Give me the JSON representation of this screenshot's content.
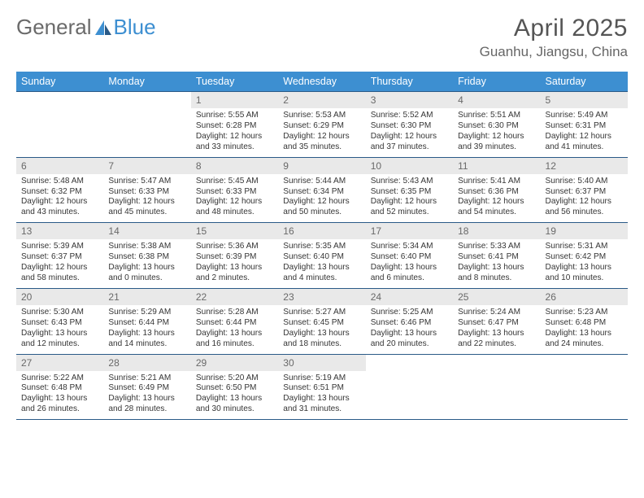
{
  "logo": {
    "text1": "General",
    "text2": "Blue"
  },
  "title": {
    "month": "April 2025",
    "location": "Guanhu, Jiangsu, China"
  },
  "colors": {
    "header_bg": "#3d8fd1",
    "header_text": "#ffffff",
    "daynum_bg": "#e9e9e9",
    "daynum_text": "#696969",
    "week_border": "#2a5a87",
    "body_text": "#353535",
    "page_bg": "#ffffff",
    "logo_gray": "#6a6a6a",
    "logo_blue": "#3d8fd1"
  },
  "typography": {
    "title_fontsize": 30,
    "location_fontsize": 17,
    "dow_fontsize": 12.5,
    "daynum_fontsize": 12,
    "body_fontsize": 10.1
  },
  "dow": [
    "Sunday",
    "Monday",
    "Tuesday",
    "Wednesday",
    "Thursday",
    "Friday",
    "Saturday"
  ],
  "weeks": [
    [
      {
        "n": "",
        "sr": "",
        "ss": "",
        "dl1": "",
        "dl2": ""
      },
      {
        "n": "",
        "sr": "",
        "ss": "",
        "dl1": "",
        "dl2": ""
      },
      {
        "n": "1",
        "sr": "Sunrise: 5:55 AM",
        "ss": "Sunset: 6:28 PM",
        "dl1": "Daylight: 12 hours",
        "dl2": "and 33 minutes."
      },
      {
        "n": "2",
        "sr": "Sunrise: 5:53 AM",
        "ss": "Sunset: 6:29 PM",
        "dl1": "Daylight: 12 hours",
        "dl2": "and 35 minutes."
      },
      {
        "n": "3",
        "sr": "Sunrise: 5:52 AM",
        "ss": "Sunset: 6:30 PM",
        "dl1": "Daylight: 12 hours",
        "dl2": "and 37 minutes."
      },
      {
        "n": "4",
        "sr": "Sunrise: 5:51 AM",
        "ss": "Sunset: 6:30 PM",
        "dl1": "Daylight: 12 hours",
        "dl2": "and 39 minutes."
      },
      {
        "n": "5",
        "sr": "Sunrise: 5:49 AM",
        "ss": "Sunset: 6:31 PM",
        "dl1": "Daylight: 12 hours",
        "dl2": "and 41 minutes."
      }
    ],
    [
      {
        "n": "6",
        "sr": "Sunrise: 5:48 AM",
        "ss": "Sunset: 6:32 PM",
        "dl1": "Daylight: 12 hours",
        "dl2": "and 43 minutes."
      },
      {
        "n": "7",
        "sr": "Sunrise: 5:47 AM",
        "ss": "Sunset: 6:33 PM",
        "dl1": "Daylight: 12 hours",
        "dl2": "and 45 minutes."
      },
      {
        "n": "8",
        "sr": "Sunrise: 5:45 AM",
        "ss": "Sunset: 6:33 PM",
        "dl1": "Daylight: 12 hours",
        "dl2": "and 48 minutes."
      },
      {
        "n": "9",
        "sr": "Sunrise: 5:44 AM",
        "ss": "Sunset: 6:34 PM",
        "dl1": "Daylight: 12 hours",
        "dl2": "and 50 minutes."
      },
      {
        "n": "10",
        "sr": "Sunrise: 5:43 AM",
        "ss": "Sunset: 6:35 PM",
        "dl1": "Daylight: 12 hours",
        "dl2": "and 52 minutes."
      },
      {
        "n": "11",
        "sr": "Sunrise: 5:41 AM",
        "ss": "Sunset: 6:36 PM",
        "dl1": "Daylight: 12 hours",
        "dl2": "and 54 minutes."
      },
      {
        "n": "12",
        "sr": "Sunrise: 5:40 AM",
        "ss": "Sunset: 6:37 PM",
        "dl1": "Daylight: 12 hours",
        "dl2": "and 56 minutes."
      }
    ],
    [
      {
        "n": "13",
        "sr": "Sunrise: 5:39 AM",
        "ss": "Sunset: 6:37 PM",
        "dl1": "Daylight: 12 hours",
        "dl2": "and 58 minutes."
      },
      {
        "n": "14",
        "sr": "Sunrise: 5:38 AM",
        "ss": "Sunset: 6:38 PM",
        "dl1": "Daylight: 13 hours",
        "dl2": "and 0 minutes."
      },
      {
        "n": "15",
        "sr": "Sunrise: 5:36 AM",
        "ss": "Sunset: 6:39 PM",
        "dl1": "Daylight: 13 hours",
        "dl2": "and 2 minutes."
      },
      {
        "n": "16",
        "sr": "Sunrise: 5:35 AM",
        "ss": "Sunset: 6:40 PM",
        "dl1": "Daylight: 13 hours",
        "dl2": "and 4 minutes."
      },
      {
        "n": "17",
        "sr": "Sunrise: 5:34 AM",
        "ss": "Sunset: 6:40 PM",
        "dl1": "Daylight: 13 hours",
        "dl2": "and 6 minutes."
      },
      {
        "n": "18",
        "sr": "Sunrise: 5:33 AM",
        "ss": "Sunset: 6:41 PM",
        "dl1": "Daylight: 13 hours",
        "dl2": "and 8 minutes."
      },
      {
        "n": "19",
        "sr": "Sunrise: 5:31 AM",
        "ss": "Sunset: 6:42 PM",
        "dl1": "Daylight: 13 hours",
        "dl2": "and 10 minutes."
      }
    ],
    [
      {
        "n": "20",
        "sr": "Sunrise: 5:30 AM",
        "ss": "Sunset: 6:43 PM",
        "dl1": "Daylight: 13 hours",
        "dl2": "and 12 minutes."
      },
      {
        "n": "21",
        "sr": "Sunrise: 5:29 AM",
        "ss": "Sunset: 6:44 PM",
        "dl1": "Daylight: 13 hours",
        "dl2": "and 14 minutes."
      },
      {
        "n": "22",
        "sr": "Sunrise: 5:28 AM",
        "ss": "Sunset: 6:44 PM",
        "dl1": "Daylight: 13 hours",
        "dl2": "and 16 minutes."
      },
      {
        "n": "23",
        "sr": "Sunrise: 5:27 AM",
        "ss": "Sunset: 6:45 PM",
        "dl1": "Daylight: 13 hours",
        "dl2": "and 18 minutes."
      },
      {
        "n": "24",
        "sr": "Sunrise: 5:25 AM",
        "ss": "Sunset: 6:46 PM",
        "dl1": "Daylight: 13 hours",
        "dl2": "and 20 minutes."
      },
      {
        "n": "25",
        "sr": "Sunrise: 5:24 AM",
        "ss": "Sunset: 6:47 PM",
        "dl1": "Daylight: 13 hours",
        "dl2": "and 22 minutes."
      },
      {
        "n": "26",
        "sr": "Sunrise: 5:23 AM",
        "ss": "Sunset: 6:48 PM",
        "dl1": "Daylight: 13 hours",
        "dl2": "and 24 minutes."
      }
    ],
    [
      {
        "n": "27",
        "sr": "Sunrise: 5:22 AM",
        "ss": "Sunset: 6:48 PM",
        "dl1": "Daylight: 13 hours",
        "dl2": "and 26 minutes."
      },
      {
        "n": "28",
        "sr": "Sunrise: 5:21 AM",
        "ss": "Sunset: 6:49 PM",
        "dl1": "Daylight: 13 hours",
        "dl2": "and 28 minutes."
      },
      {
        "n": "29",
        "sr": "Sunrise: 5:20 AM",
        "ss": "Sunset: 6:50 PM",
        "dl1": "Daylight: 13 hours",
        "dl2": "and 30 minutes."
      },
      {
        "n": "30",
        "sr": "Sunrise: 5:19 AM",
        "ss": "Sunset: 6:51 PM",
        "dl1": "Daylight: 13 hours",
        "dl2": "and 31 minutes."
      },
      {
        "n": "",
        "sr": "",
        "ss": "",
        "dl1": "",
        "dl2": ""
      },
      {
        "n": "",
        "sr": "",
        "ss": "",
        "dl1": "",
        "dl2": ""
      },
      {
        "n": "",
        "sr": "",
        "ss": "",
        "dl1": "",
        "dl2": ""
      }
    ]
  ]
}
